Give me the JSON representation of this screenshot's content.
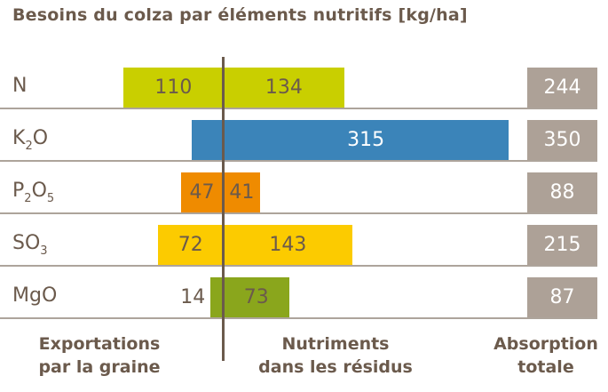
{
  "chart_data": {
    "type": "bar",
    "orientation": "horizontal-diverging",
    "title": "Besoins du colza par éléments nutritifs [kg/ha]",
    "categories": [
      {
        "base": "N",
        "sub1": "",
        "mid": "",
        "sub2": ""
      },
      {
        "base": "K",
        "sub1": "2",
        "mid": "O",
        "sub2": ""
      },
      {
        "base": "P",
        "sub1": "2",
        "mid": "O",
        "sub2": "5"
      },
      {
        "base": "SO",
        "sub1": "3",
        "mid": "",
        "sub2": ""
      },
      {
        "base": "MgO",
        "sub1": "",
        "mid": "",
        "sub2": ""
      }
    ],
    "series": [
      {
        "name": "Exportations par la graine",
        "values": [
          110,
          35,
          47,
          72,
          14
        ]
      },
      {
        "name": "Nutriments dans les résidus",
        "values": [
          134,
          315,
          41,
          143,
          73
        ]
      },
      {
        "name": "Absorption totale",
        "values": [
          244,
          350,
          88,
          215,
          87
        ]
      }
    ],
    "colors": [
      "#c9cf00",
      "#3b84b9",
      "#ef8b00",
      "#fccb00",
      "#8aa61c"
    ],
    "total_color": "#ada197",
    "label_colors": [
      "#6b5a4c",
      "#ffffff",
      "#6b5a4c",
      "#6b5a4c",
      "#6b5a4c"
    ],
    "footer": {
      "left": [
        "Exportations",
        "par la graine"
      ],
      "middle": [
        "Nutriments",
        "dans les résidus"
      ],
      "right": [
        "Absorption",
        "totale"
      ]
    }
  }
}
